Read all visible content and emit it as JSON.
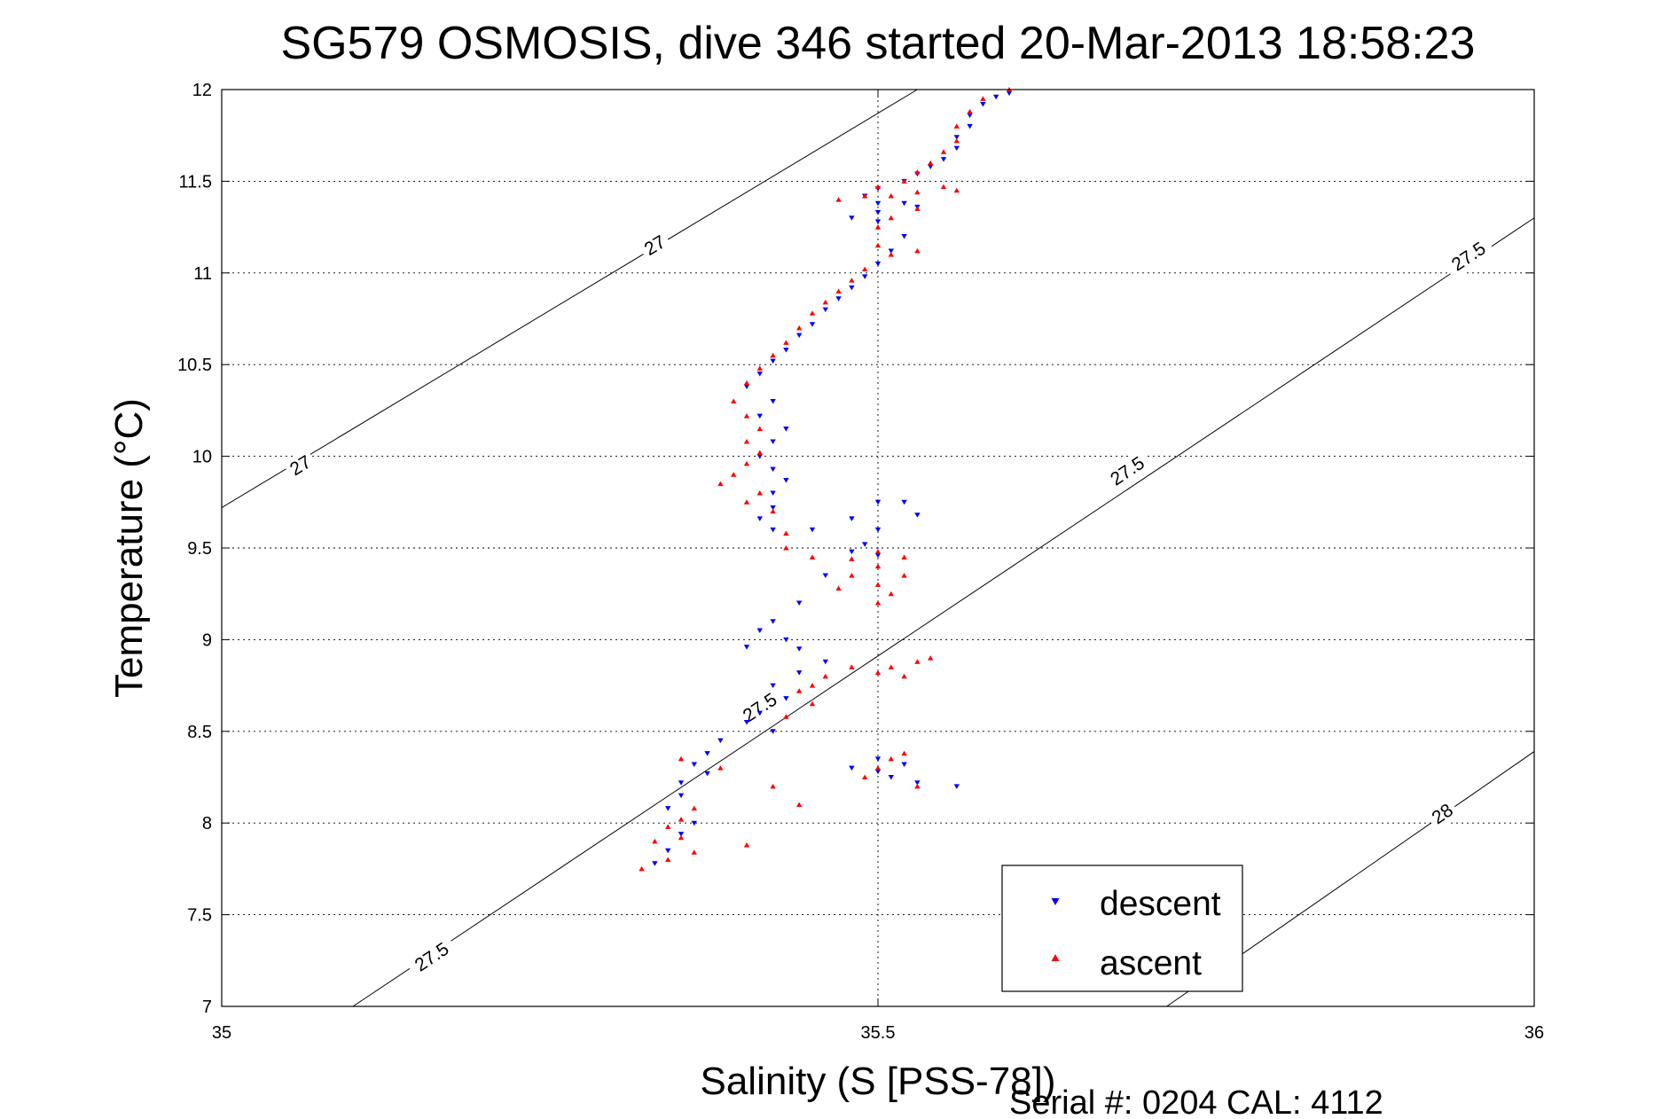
{
  "chart_data": {
    "type": "scatter",
    "title": "SG579 OSMOSIS, dive 346 started 20-Mar-2013 18:58:23",
    "xlabel": "Salinity (S [PSS-78])",
    "ylabel": "Temperature (°C)",
    "xlim": [
      35,
      36
    ],
    "ylim": [
      7,
      12
    ],
    "x_ticks": [
      "35",
      "35.5",
      "36"
    ],
    "y_ticks": [
      "7",
      "7.5",
      "8",
      "8.5",
      "9",
      "9.5",
      "10",
      "10.5",
      "11",
      "11.5",
      "12"
    ],
    "grid": true,
    "legend_position": "bottom-right",
    "footer": "Serial #: 0204  CAL: 4112",
    "colors": {
      "descent": "#0000ff",
      "ascent": "#ff0000",
      "contour": "#000000"
    },
    "density_contours": [
      {
        "label": "27",
        "line": [
          [
            35.0,
            9.72
          ],
          [
            35.53,
            12.0
          ]
        ],
        "labels_at": [
          [
            35.06,
            9.95
          ],
          [
            35.33,
            11.15
          ]
        ]
      },
      {
        "label": "27.5",
        "line": [
          [
            35.1,
            7.0
          ],
          [
            36.0,
            11.3
          ]
        ],
        "labels_at": [
          [
            35.16,
            7.27
          ],
          [
            35.41,
            8.63
          ],
          [
            35.69,
            9.92
          ],
          [
            35.95,
            11.09
          ]
        ]
      },
      {
        "label": "28",
        "line": [
          [
            35.72,
            7.0
          ],
          [
            36.0,
            8.39
          ]
        ],
        "labels_at": [
          [
            35.93,
            8.05
          ]
        ]
      }
    ],
    "series": [
      {
        "name": "descent",
        "marker": "triangle-down",
        "points": [
          [
            35.6,
            11.98
          ],
          [
            35.59,
            11.96
          ],
          [
            35.58,
            11.92
          ],
          [
            35.57,
            11.86
          ],
          [
            35.57,
            11.8
          ],
          [
            35.56,
            11.74
          ],
          [
            35.56,
            11.68
          ],
          [
            35.55,
            11.62
          ],
          [
            35.54,
            11.58
          ],
          [
            35.53,
            11.54
          ],
          [
            35.52,
            11.5
          ],
          [
            35.5,
            11.46
          ],
          [
            35.49,
            11.42
          ],
          [
            35.5,
            11.38
          ],
          [
            35.52,
            11.38
          ],
          [
            35.53,
            11.36
          ],
          [
            35.5,
            11.33
          ],
          [
            35.48,
            11.3
          ],
          [
            35.5,
            11.28
          ],
          [
            35.52,
            11.2
          ],
          [
            35.51,
            11.12
          ],
          [
            35.5,
            11.05
          ],
          [
            35.49,
            10.98
          ],
          [
            35.48,
            10.92
          ],
          [
            35.47,
            10.86
          ],
          [
            35.46,
            10.8
          ],
          [
            35.45,
            10.72
          ],
          [
            35.44,
            10.66
          ],
          [
            35.43,
            10.58
          ],
          [
            35.42,
            10.52
          ],
          [
            35.41,
            10.45
          ],
          [
            35.4,
            10.38
          ],
          [
            35.42,
            10.3
          ],
          [
            35.41,
            10.22
          ],
          [
            35.43,
            10.15
          ],
          [
            35.42,
            10.08
          ],
          [
            35.41,
            10.0
          ],
          [
            35.42,
            9.93
          ],
          [
            35.43,
            9.87
          ],
          [
            35.42,
            9.8
          ],
          [
            35.42,
            9.72
          ],
          [
            35.41,
            9.66
          ],
          [
            35.42,
            9.6
          ],
          [
            35.45,
            9.6
          ],
          [
            35.48,
            9.66
          ],
          [
            35.5,
            9.75
          ],
          [
            35.52,
            9.75
          ],
          [
            35.53,
            9.68
          ],
          [
            35.5,
            9.6
          ],
          [
            35.49,
            9.52
          ],
          [
            35.5,
            9.46
          ],
          [
            35.48,
            9.48
          ],
          [
            35.46,
            9.35
          ],
          [
            35.44,
            9.2
          ],
          [
            35.42,
            9.1
          ],
          [
            35.43,
            9.0
          ],
          [
            35.4,
            8.96
          ],
          [
            35.41,
            9.05
          ],
          [
            35.44,
            8.95
          ],
          [
            35.46,
            8.88
          ],
          [
            35.44,
            8.82
          ],
          [
            35.42,
            8.75
          ],
          [
            35.43,
            8.68
          ],
          [
            35.41,
            8.6
          ],
          [
            35.4,
            8.55
          ],
          [
            35.42,
            8.5
          ],
          [
            35.38,
            8.45
          ],
          [
            35.37,
            8.38
          ],
          [
            35.36,
            8.32
          ],
          [
            35.37,
            8.27
          ],
          [
            35.35,
            8.22
          ],
          [
            35.35,
            8.15
          ],
          [
            35.34,
            8.08
          ],
          [
            35.36,
            8.0
          ],
          [
            35.35,
            7.94
          ],
          [
            35.34,
            7.85
          ],
          [
            35.33,
            7.78
          ],
          [
            35.5,
            8.35
          ],
          [
            35.52,
            8.32
          ],
          [
            35.5,
            8.28
          ],
          [
            35.51,
            8.25
          ],
          [
            35.53,
            8.22
          ],
          [
            35.56,
            8.2
          ],
          [
            35.48,
            8.3
          ]
        ]
      },
      {
        "name": "ascent",
        "marker": "triangle-up",
        "points": [
          [
            35.6,
            12.0
          ],
          [
            35.58,
            11.95
          ],
          [
            35.57,
            11.88
          ],
          [
            35.56,
            11.8
          ],
          [
            35.56,
            11.72
          ],
          [
            35.55,
            11.66
          ],
          [
            35.54,
            11.6
          ],
          [
            35.53,
            11.55
          ],
          [
            35.52,
            11.5
          ],
          [
            35.5,
            11.47
          ],
          [
            35.49,
            11.42
          ],
          [
            35.47,
            11.4
          ],
          [
            35.51,
            11.42
          ],
          [
            35.53,
            11.44
          ],
          [
            35.55,
            11.47
          ],
          [
            35.56,
            11.45
          ],
          [
            35.53,
            11.35
          ],
          [
            35.51,
            11.3
          ],
          [
            35.5,
            11.25
          ],
          [
            35.5,
            11.15
          ],
          [
            35.51,
            11.1
          ],
          [
            35.53,
            11.12
          ],
          [
            35.49,
            11.02
          ],
          [
            35.48,
            10.96
          ],
          [
            35.47,
            10.9
          ],
          [
            35.46,
            10.84
          ],
          [
            35.45,
            10.78
          ],
          [
            35.44,
            10.7
          ],
          [
            35.43,
            10.62
          ],
          [
            35.42,
            10.55
          ],
          [
            35.41,
            10.48
          ],
          [
            35.4,
            10.4
          ],
          [
            35.39,
            10.3
          ],
          [
            35.4,
            10.22
          ],
          [
            35.41,
            10.15
          ],
          [
            35.4,
            10.08
          ],
          [
            35.41,
            10.02
          ],
          [
            35.4,
            9.96
          ],
          [
            35.39,
            9.9
          ],
          [
            35.38,
            9.85
          ],
          [
            35.41,
            9.8
          ],
          [
            35.4,
            9.75
          ],
          [
            35.42,
            9.7
          ],
          [
            35.43,
            9.58
          ],
          [
            35.43,
            9.5
          ],
          [
            35.45,
            9.45
          ],
          [
            35.48,
            9.44
          ],
          [
            35.5,
            9.48
          ],
          [
            35.52,
            9.45
          ],
          [
            35.5,
            9.4
          ],
          [
            35.48,
            9.35
          ],
          [
            35.5,
            9.3
          ],
          [
            35.51,
            9.25
          ],
          [
            35.52,
            9.35
          ],
          [
            35.5,
            9.2
          ],
          [
            35.47,
            9.28
          ],
          [
            35.48,
            8.85
          ],
          [
            35.46,
            8.8
          ],
          [
            35.45,
            8.75
          ],
          [
            35.44,
            8.72
          ],
          [
            35.45,
            8.65
          ],
          [
            35.43,
            8.58
          ],
          [
            35.5,
            8.82
          ],
          [
            35.51,
            8.85
          ],
          [
            35.53,
            8.88
          ],
          [
            35.54,
            8.9
          ],
          [
            35.52,
            8.8
          ],
          [
            35.35,
            8.35
          ],
          [
            35.38,
            8.3
          ],
          [
            35.42,
            8.2
          ],
          [
            35.44,
            8.1
          ],
          [
            35.36,
            8.08
          ],
          [
            35.35,
            8.02
          ],
          [
            35.34,
            7.98
          ],
          [
            35.35,
            7.92
          ],
          [
            35.33,
            7.9
          ],
          [
            35.32,
            7.75
          ],
          [
            35.34,
            7.8
          ],
          [
            35.36,
            7.84
          ],
          [
            35.4,
            7.88
          ],
          [
            35.49,
            8.25
          ],
          [
            35.5,
            8.3
          ],
          [
            35.51,
            8.35
          ],
          [
            35.52,
            8.38
          ],
          [
            35.53,
            8.2
          ]
        ]
      }
    ]
  }
}
